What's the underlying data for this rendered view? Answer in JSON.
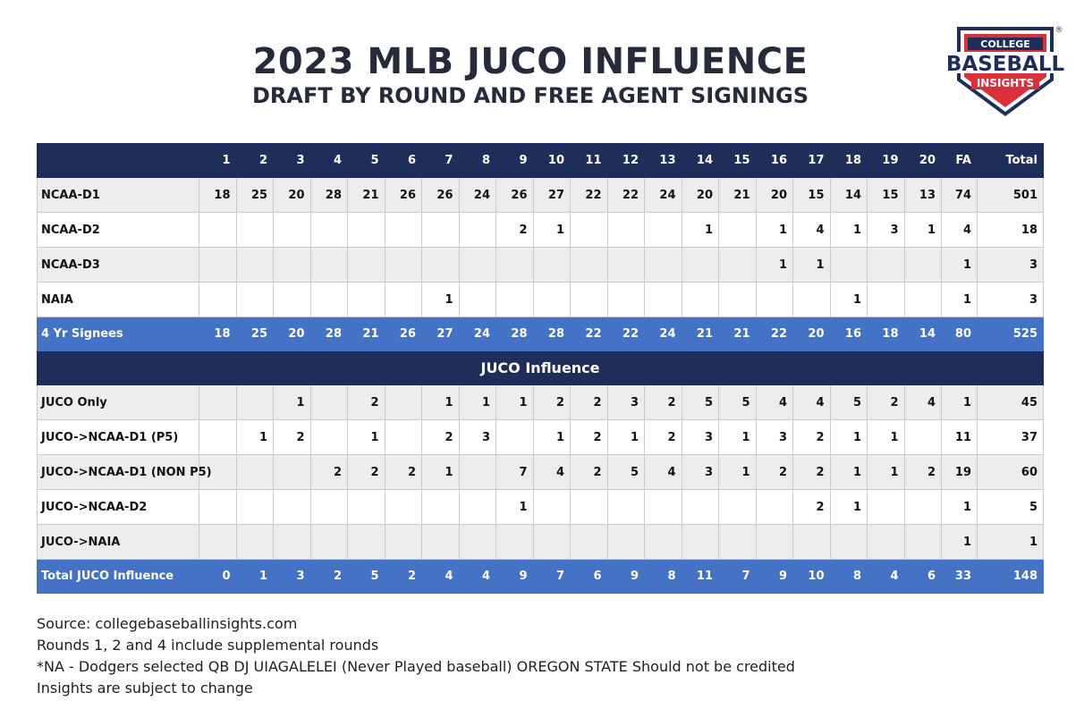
{
  "header": {
    "title": "2023 MLB JUCO INFLUENCE",
    "subtitle": "DRAFT BY ROUND AND FREE AGENT SIGNINGS"
  },
  "logo": {
    "line1": "COLLEGE",
    "line2": "BASEBALL",
    "line3": "INSIGHTS",
    "mark": "®",
    "colors": {
      "navy": "#1f2d5a",
      "red": "#d9303a"
    }
  },
  "table": {
    "columns": [
      "1",
      "2",
      "3",
      "4",
      "5",
      "6",
      "7",
      "8",
      "9",
      "10",
      "11",
      "12",
      "13",
      "14",
      "15",
      "16",
      "17",
      "18",
      "19",
      "20",
      "FA",
      "Total"
    ],
    "section_label": "JUCO Influence",
    "rows": [
      {
        "kind": "data",
        "style": "alt",
        "label": "NCAA-D1",
        "cells": [
          "18",
          "25",
          "20",
          "28",
          "21",
          "26",
          "26",
          "24",
          "26",
          "27",
          "22",
          "22",
          "24",
          "20",
          "21",
          "20",
          "15",
          "14",
          "15",
          "13",
          "74",
          "501"
        ]
      },
      {
        "kind": "data",
        "style": "wh",
        "label": "NCAA-D2",
        "cells": [
          "",
          "",
          "",
          "",
          "",
          "",
          "",
          "",
          "2",
          "1",
          "",
          "",
          "",
          "1",
          "",
          "1",
          "4",
          "1",
          "3",
          "1",
          "4",
          "18"
        ]
      },
      {
        "kind": "data",
        "style": "alt",
        "label": "NCAA-D3",
        "cells": [
          "",
          "",
          "",
          "",
          "",
          "",
          "",
          "",
          "",
          "",
          "",
          "",
          "",
          "",
          "",
          "1",
          "1",
          "",
          "",
          "",
          "1",
          "3"
        ]
      },
      {
        "kind": "data",
        "style": "wh",
        "label": "NAIA",
        "cells": [
          "",
          "",
          "",
          "",
          "",
          "",
          "1",
          "",
          "",
          "",
          "",
          "",
          "",
          "",
          "",
          "",
          "",
          "1",
          "",
          "",
          "1",
          "3"
        ]
      },
      {
        "kind": "sum",
        "label": "4 Yr Signees",
        "cells": [
          "18",
          "25",
          "20",
          "28",
          "21",
          "26",
          "27",
          "24",
          "28",
          "28",
          "22",
          "22",
          "24",
          "21",
          "21",
          "22",
          "20",
          "16",
          "18",
          "14",
          "80",
          "525"
        ]
      },
      {
        "kind": "section"
      },
      {
        "kind": "data",
        "style": "alt",
        "label": "JUCO Only",
        "cells": [
          "",
          "",
          "1",
          "",
          "2",
          "",
          "1",
          "1",
          "1",
          "2",
          "2",
          "3",
          "2",
          "5",
          "5",
          "4",
          "4",
          "5",
          "2",
          "4",
          "1",
          "45"
        ]
      },
      {
        "kind": "data",
        "style": "wh",
        "label": "JUCO->NCAA-D1 (P5)",
        "cells": [
          "",
          "1",
          "2",
          "",
          "1",
          "",
          "2",
          "3",
          "",
          "1",
          "2",
          "1",
          "2",
          "3",
          "1",
          "3",
          "2",
          "1",
          "1",
          "",
          "11",
          "37"
        ]
      },
      {
        "kind": "data",
        "style": "alt",
        "label": "JUCO->NCAA-D1 (NON P5)",
        "cells": [
          "",
          "",
          "",
          "2",
          "2",
          "2",
          "1",
          "",
          "7",
          "4",
          "2",
          "5",
          "4",
          "3",
          "1",
          "2",
          "2",
          "1",
          "1",
          "2",
          "19",
          "60"
        ]
      },
      {
        "kind": "data",
        "style": "wh",
        "label": "JUCO->NCAA-D2",
        "cells": [
          "",
          "",
          "",
          "",
          "",
          "",
          "",
          "",
          "1",
          "",
          "",
          "",
          "",
          "",
          "",
          "",
          "2",
          "1",
          "",
          "",
          "1",
          "5"
        ]
      },
      {
        "kind": "data",
        "style": "alt",
        "label": "JUCO->NAIA",
        "cells": [
          "",
          "",
          "",
          "",
          "",
          "",
          "",
          "",
          "",
          "",
          "",
          "",
          "",
          "",
          "",
          "",
          "",
          "",
          "",
          "",
          "1",
          "1"
        ]
      },
      {
        "kind": "sum",
        "label": "Total JUCO Influence",
        "cells": [
          "0",
          "1",
          "3",
          "2",
          "5",
          "2",
          "4",
          "4",
          "9",
          "7",
          "6",
          "9",
          "8",
          "11",
          "7",
          "9",
          "10",
          "8",
          "4",
          "6",
          "33",
          "148"
        ]
      }
    ]
  },
  "notes": [
    "Source: collegebaseballinsights.com",
    "Rounds 1, 2 and 4 include supplemental rounds",
    "*NA - Dodgers selected QB DJ UIAGALELEI (Never Played baseball) OREGON STATE Should not be credited",
    "Insights are subject to change"
  ]
}
